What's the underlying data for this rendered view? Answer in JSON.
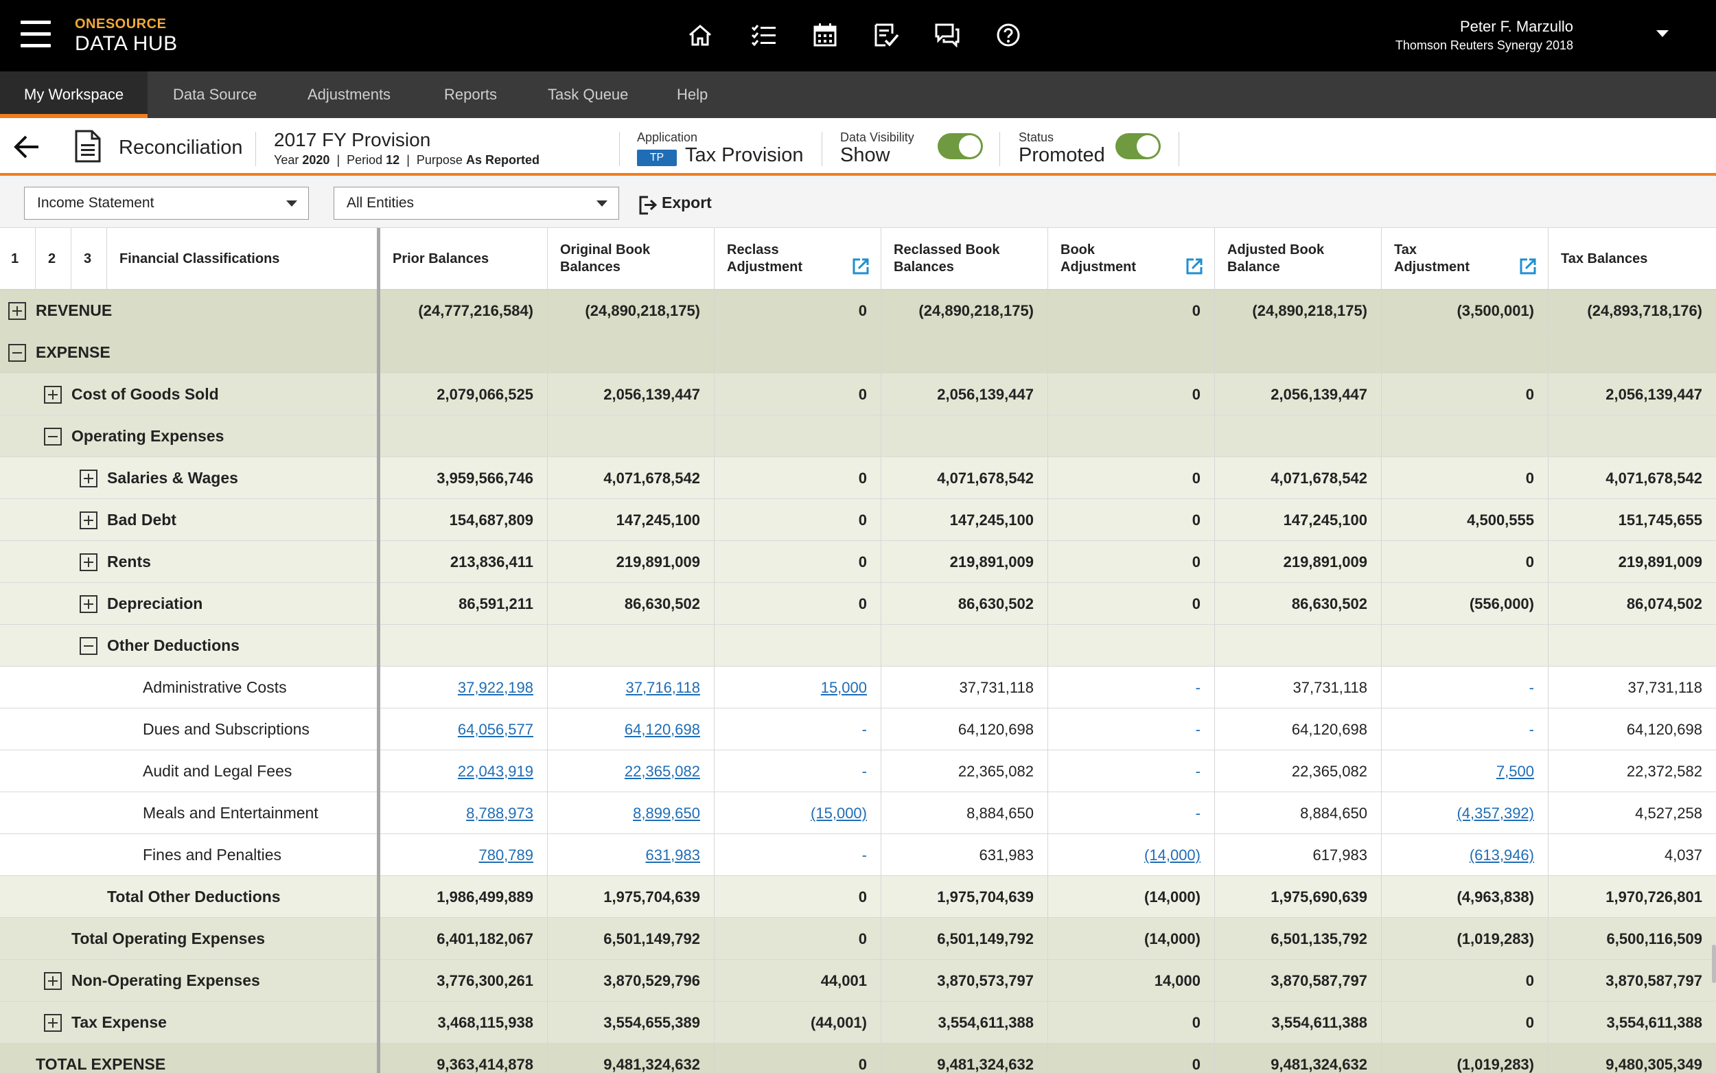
{
  "topbar": {
    "brand_top": "ONESOURCE",
    "brand_bottom": "DATA HUB",
    "user_name": "Peter F. Marzullo",
    "user_org": "Thomson Reuters Synergy 2018",
    "icons": [
      "home-icon",
      "task-list-icon",
      "calendar-icon",
      "review-icon",
      "chat-icon",
      "help-icon"
    ]
  },
  "nav": {
    "tabs": [
      "My Workspace",
      "Data Source",
      "Adjustments",
      "Reports",
      "Task Queue",
      "Help"
    ],
    "active": "My Workspace"
  },
  "header": {
    "page_title": "Reconciliation",
    "provision_title": "2017 FY Provision",
    "year_label": "Year",
    "year": "2020",
    "period_label": "Period",
    "period": "12",
    "purpose_label": "Purpose",
    "purpose": "As Reported",
    "application_label": "Application",
    "application_badge": "TP",
    "application_name": "Tax Provision",
    "visibility_label": "Data Visibility",
    "visibility_value": "Show",
    "status_label": "Status",
    "status_value": "Promoted",
    "accent_color": "#f07e1f",
    "toggle_color": "#6f9a3f"
  },
  "toolbar": {
    "statement_select": "Income Statement",
    "entity_select": "All Entities",
    "export_label": "Export"
  },
  "table": {
    "level_headers": [
      "1",
      "2",
      "3"
    ],
    "columns": [
      "Financial Classifications",
      "Prior Balances",
      "Original Book Balances",
      "Reclass Adjustment",
      "Reclassed Book Balances",
      "Book Adjustment",
      "Adjusted Book Balance",
      "Tax Adjustment",
      "Tax Balances"
    ],
    "rows": [
      {
        "label": "REVENUE",
        "type": "lvl0",
        "indent": 0,
        "expander": "plus",
        "values": [
          "(24,777,216,584)",
          "(24,890,218,175)",
          "0",
          "(24,890,218,175)",
          "0",
          "(24,890,218,175)",
          "(3,500,001)",
          "(24,893,718,176)"
        ]
      },
      {
        "label": "EXPENSE",
        "type": "lvl0",
        "indent": 0,
        "expander": "minus",
        "values": [
          "",
          "",
          "",
          "",
          "",
          "",
          "",
          ""
        ]
      },
      {
        "label": "Cost of Goods Sold",
        "type": "lvl1",
        "indent": 1,
        "expander": "plus",
        "values": [
          "2,079,066,525",
          "2,056,139,447",
          "0",
          "2,056,139,447",
          "0",
          "2,056,139,447",
          "0",
          "2,056,139,447"
        ]
      },
      {
        "label": "Operating Expenses",
        "type": "lvl1",
        "indent": 1,
        "expander": "minus",
        "values": [
          "",
          "",
          "",
          "",
          "",
          "",
          "",
          ""
        ]
      },
      {
        "label": "Salaries & Wages",
        "type": "lvl2",
        "indent": 2,
        "expander": "plus",
        "values": [
          "3,959,566,746",
          "4,071,678,542",
          "0",
          "4,071,678,542",
          "0",
          "4,071,678,542",
          "0",
          "4,071,678,542"
        ]
      },
      {
        "label": "Bad Debt",
        "type": "lvl2",
        "indent": 2,
        "expander": "plus",
        "values": [
          "154,687,809",
          "147,245,100",
          "0",
          "147,245,100",
          "0",
          "147,245,100",
          "4,500,555",
          "151,745,655"
        ]
      },
      {
        "label": "Rents",
        "type": "lvl2",
        "indent": 2,
        "expander": "plus",
        "values": [
          "213,836,411",
          "219,891,009",
          "0",
          "219,891,009",
          "0",
          "219,891,009",
          "0",
          "219,891,009"
        ]
      },
      {
        "label": "Depreciation",
        "type": "lvl2",
        "indent": 2,
        "expander": "plus",
        "values": [
          "86,591,211",
          "86,630,502",
          "0",
          "86,630,502",
          "0",
          "86,630,502",
          "(556,000)",
          "86,074,502"
        ]
      },
      {
        "label": "Other Deductions",
        "type": "lvl2",
        "indent": 2,
        "expander": "minus",
        "values": [
          "",
          "",
          "",
          "",
          "",
          "",
          "",
          ""
        ]
      },
      {
        "label": "Administrative Costs",
        "type": "detail",
        "indent": 3,
        "expander": "",
        "values": [
          "37,922,198",
          "37,716,118",
          "15,000",
          "37,731,118",
          "-",
          "37,731,118",
          "-",
          "37,731,118"
        ]
      },
      {
        "label": "Dues and Subscriptions",
        "type": "detail",
        "indent": 3,
        "expander": "",
        "values": [
          "64,056,577",
          "64,120,698",
          "-",
          "64,120,698",
          "-",
          "64,120,698",
          "-",
          "64,120,698"
        ]
      },
      {
        "label": "Audit and Legal Fees",
        "type": "detail",
        "indent": 3,
        "expander": "",
        "values": [
          "22,043,919",
          "22,365,082",
          "-",
          "22,365,082",
          "-",
          "22,365,082",
          "7,500",
          "22,372,582"
        ]
      },
      {
        "label": "Meals and Entertainment",
        "type": "detail",
        "indent": 3,
        "expander": "",
        "values": [
          "8,788,973",
          "8,899,650",
          "(15,000)",
          "8,884,650",
          "-",
          "8,884,650",
          "(4,357,392)",
          "4,527,258"
        ]
      },
      {
        "label": "Fines and Penalties",
        "type": "detail",
        "indent": 3,
        "expander": "",
        "values": [
          "780,789",
          "631,983",
          "-",
          "631,983",
          "(14,000)",
          "617,983",
          "(613,946)",
          "4,037"
        ]
      },
      {
        "label": "Total Other Deductions",
        "type": "total2",
        "indent": 2,
        "expander": "",
        "values": [
          "1,986,499,889",
          "1,975,704,639",
          "0",
          "1,975,704,639",
          "(14,000)",
          "1,975,690,639",
          "(4,963,838)",
          "1,970,726,801"
        ]
      },
      {
        "label": "Total Operating Expenses",
        "type": "total1",
        "indent": 1,
        "expander": "",
        "values": [
          "6,401,182,067",
          "6,501,149,792",
          "0",
          "6,501,149,792",
          "(14,000)",
          "6,501,135,792",
          "(1,019,283)",
          "6,500,116,509"
        ]
      },
      {
        "label": "Non-Operating Expenses",
        "type": "lvl1",
        "indent": 1,
        "expander": "plus",
        "values": [
          "3,776,300,261",
          "3,870,529,796",
          "44,001",
          "3,870,573,797",
          "14,000",
          "3,870,587,797",
          "0",
          "3,870,587,797"
        ]
      },
      {
        "label": "Tax Expense",
        "type": "lvl1",
        "indent": 1,
        "expander": "plus",
        "values": [
          "3,468,115,938",
          "3,554,655,389",
          "(44,001)",
          "3,554,611,388",
          "0",
          "3,554,611,388",
          "0",
          "3,554,611,388"
        ]
      },
      {
        "label": "TOTAL EXPENSE",
        "type": "grand",
        "indent": 0,
        "expander": "",
        "values": [
          "9,363,414,878",
          "9,481,324,632",
          "0",
          "9,481,324,632",
          "0",
          "9,481,324,632",
          "(1,019,283)",
          "9,480,305,349"
        ]
      }
    ]
  }
}
